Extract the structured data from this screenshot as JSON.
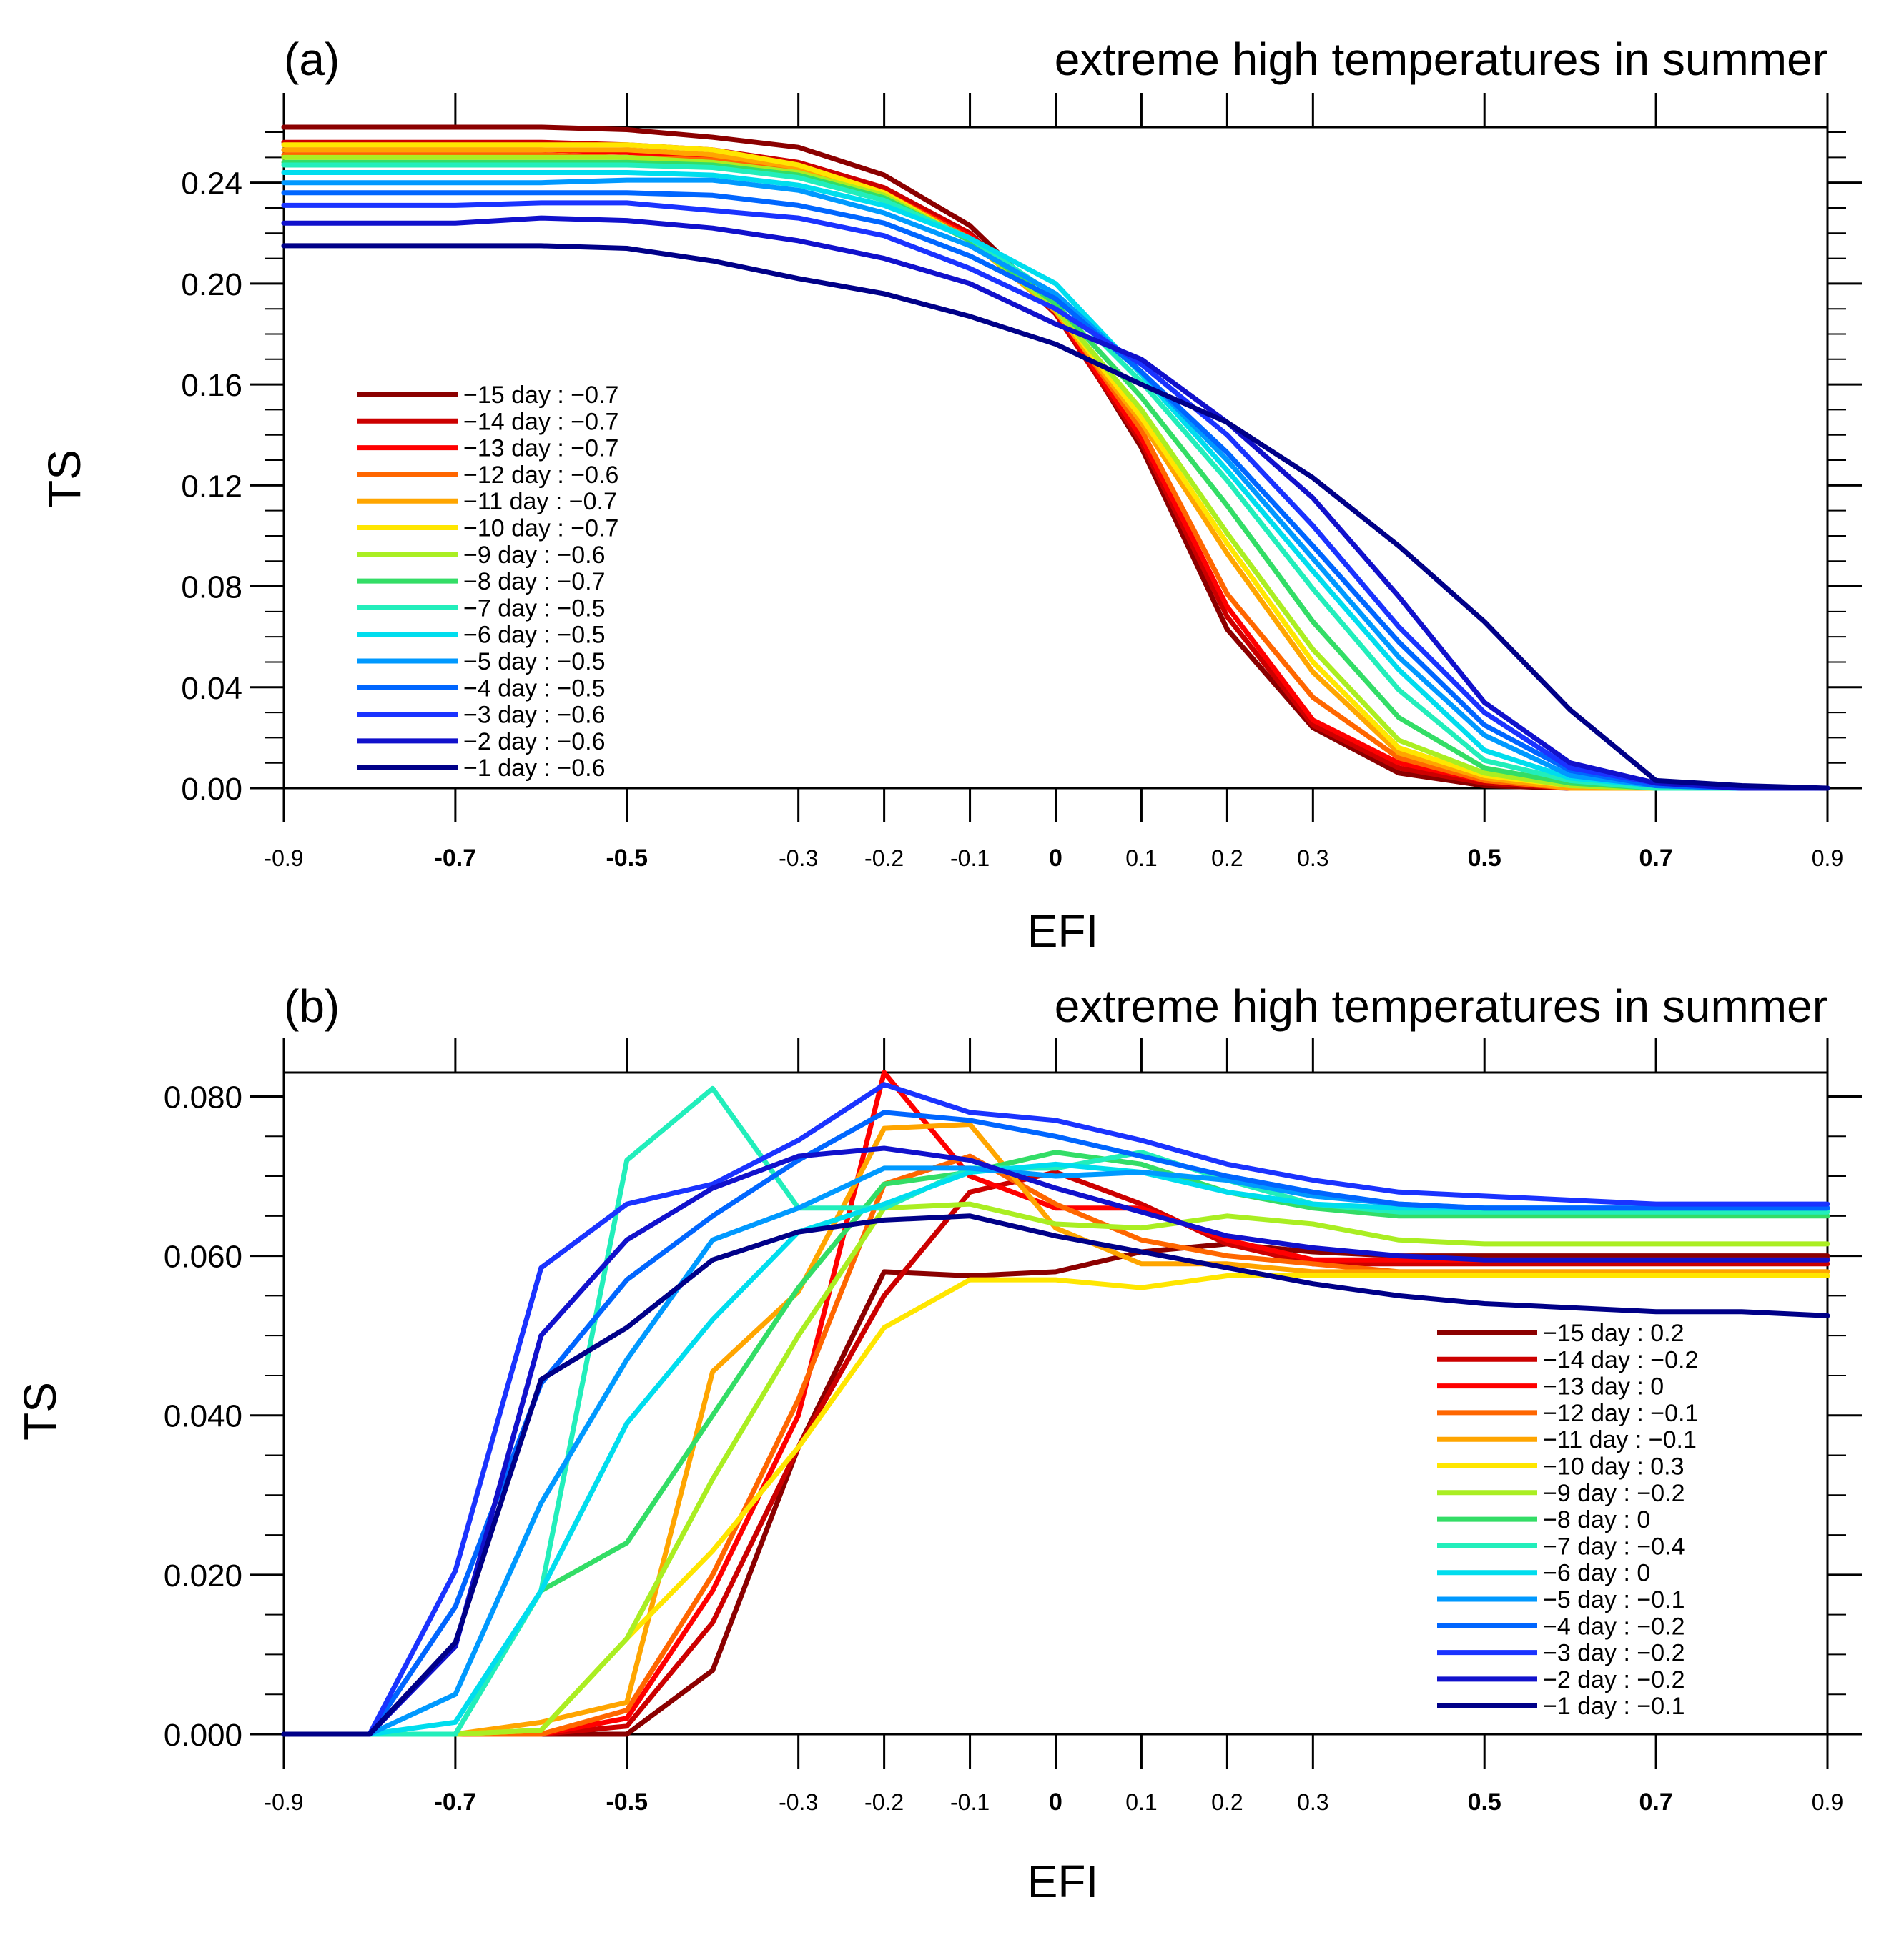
{
  "chart_data": [
    {
      "type": "line",
      "panel_label": "(a)",
      "title": "extreme high temperatures in summer",
      "xlabel": "EFI",
      "ylabel": "TS",
      "x": [
        -0.9,
        -0.8,
        -0.7,
        -0.6,
        -0.5,
        -0.4,
        -0.3,
        -0.2,
        -0.1,
        0,
        0.1,
        0.2,
        0.3,
        0.4,
        0.5,
        0.6,
        0.7,
        0.8,
        0.9
      ],
      "xticks": [
        "-0.9",
        "-0.7",
        "-0.5",
        "-0.3",
        "-0.2",
        "-0.1",
        "0",
        "0.1",
        "0.2",
        "0.3",
        "0.5",
        "0.7",
        "0.9"
      ],
      "xlim": [
        -0.9,
        0.9
      ],
      "yticks": [
        "0.00",
        "0.04",
        "0.08",
        "0.12",
        "0.16",
        "0.20",
        "0.24"
      ],
      "ylim": [
        0,
        0.262
      ],
      "grid": false,
      "legend_position": "left",
      "series": [
        {
          "name": "−15 day : −0.7",
          "color": "#8b0000",
          "values": [
            0.262,
            0.262,
            0.262,
            0.262,
            0.261,
            0.258,
            0.254,
            0.243,
            0.223,
            0.19,
            0.135,
            0.063,
            0.024,
            0.006,
            0.001,
            0,
            0,
            0,
            0
          ]
        },
        {
          "name": "−14 day : −0.7",
          "color": "#cc0000",
          "values": [
            0.256,
            0.256,
            0.256,
            0.256,
            0.255,
            0.253,
            0.248,
            0.238,
            0.22,
            0.188,
            0.137,
            0.068,
            0.025,
            0.008,
            0.002,
            0,
            0,
            0,
            0
          ]
        },
        {
          "name": "−13 day : −0.7",
          "color": "#ff0000",
          "values": [
            0.253,
            0.253,
            0.253,
            0.253,
            0.252,
            0.25,
            0.246,
            0.236,
            0.219,
            0.189,
            0.139,
            0.072,
            0.027,
            0.01,
            0.003,
            0,
            0,
            0,
            0
          ]
        },
        {
          "name": "−12 day : −0.6",
          "color": "#ff6600",
          "values": [
            0.251,
            0.251,
            0.251,
            0.251,
            0.25,
            0.249,
            0.245,
            0.236,
            0.218,
            0.19,
            0.142,
            0.077,
            0.036,
            0.012,
            0.003,
            0,
            0,
            0,
            0
          ]
        },
        {
          "name": "−11 day : −0.7",
          "color": "#ffa500",
          "values": [
            0.253,
            0.253,
            0.253,
            0.253,
            0.253,
            0.251,
            0.246,
            0.235,
            0.217,
            0.189,
            0.145,
            0.093,
            0.046,
            0.014,
            0.004,
            0,
            0,
            0,
            0
          ]
        },
        {
          "name": "−10 day : −0.7",
          "color": "#ffe600",
          "values": [
            0.255,
            0.255,
            0.255,
            0.255,
            0.255,
            0.253,
            0.247,
            0.236,
            0.217,
            0.19,
            0.147,
            0.097,
            0.05,
            0.016,
            0.005,
            0.001,
            0,
            0,
            0
          ]
        },
        {
          "name": "−9 day : −0.6",
          "color": "#aaee22",
          "values": [
            0.25,
            0.25,
            0.25,
            0.25,
            0.25,
            0.248,
            0.244,
            0.235,
            0.217,
            0.19,
            0.15,
            0.101,
            0.055,
            0.019,
            0.006,
            0.001,
            0,
            0,
            0
          ]
        },
        {
          "name": "−8 day : −0.7",
          "color": "#33dd66",
          "values": [
            0.248,
            0.248,
            0.248,
            0.248,
            0.248,
            0.247,
            0.243,
            0.234,
            0.217,
            0.192,
            0.155,
            0.112,
            0.066,
            0.028,
            0.008,
            0.002,
            0,
            0,
            0
          ]
        },
        {
          "name": "−7 day : −0.5",
          "color": "#22eebb",
          "values": [
            0.247,
            0.247,
            0.247,
            0.247,
            0.247,
            0.246,
            0.242,
            0.233,
            0.218,
            0.195,
            0.161,
            0.122,
            0.079,
            0.039,
            0.011,
            0.003,
            0,
            0,
            0
          ]
        },
        {
          "name": "−6 day : −0.5",
          "color": "#00ddee",
          "values": [
            0.244,
            0.244,
            0.244,
            0.244,
            0.244,
            0.243,
            0.239,
            0.231,
            0.218,
            0.2,
            0.164,
            0.126,
            0.086,
            0.047,
            0.015,
            0.004,
            0.001,
            0,
            0
          ]
        },
        {
          "name": "−5 day : −0.5",
          "color": "#0099ff",
          "values": [
            0.24,
            0.24,
            0.24,
            0.24,
            0.241,
            0.241,
            0.237,
            0.228,
            0.215,
            0.196,
            0.165,
            0.13,
            0.091,
            0.052,
            0.021,
            0.005,
            0.001,
            0,
            0
          ]
        },
        {
          "name": "−4 day : −0.5",
          "color": "#0066ff",
          "values": [
            0.236,
            0.236,
            0.236,
            0.236,
            0.236,
            0.235,
            0.231,
            0.224,
            0.211,
            0.194,
            0.165,
            0.133,
            0.096,
            0.058,
            0.025,
            0.007,
            0.001,
            0,
            0
          ]
        },
        {
          "name": "−3 day : −0.6",
          "color": "#1a33ff",
          "values": [
            0.231,
            0.231,
            0.231,
            0.232,
            0.232,
            0.229,
            0.226,
            0.219,
            0.206,
            0.19,
            0.168,
            0.14,
            0.104,
            0.064,
            0.03,
            0.008,
            0.002,
            0,
            0
          ]
        },
        {
          "name": "−2 day : −0.6",
          "color": "#1111cc",
          "values": [
            0.224,
            0.224,
            0.224,
            0.226,
            0.225,
            0.222,
            0.217,
            0.21,
            0.2,
            0.184,
            0.17,
            0.145,
            0.115,
            0.076,
            0.034,
            0.01,
            0.002,
            0,
            0
          ]
        },
        {
          "name": "−1 day : −0.6",
          "color": "#000088",
          "values": [
            0.215,
            0.215,
            0.215,
            0.215,
            0.214,
            0.209,
            0.202,
            0.196,
            0.187,
            0.176,
            0.16,
            0.145,
            0.123,
            0.096,
            0.066,
            0.031,
            0.003,
            0.001,
            0
          ]
        }
      ]
    },
    {
      "type": "line",
      "panel_label": "(b)",
      "title": "extreme high temperatures in summer",
      "xlabel": "EFI",
      "ylabel": "TS",
      "x": [
        -0.9,
        -0.8,
        -0.7,
        -0.6,
        -0.5,
        -0.4,
        -0.3,
        -0.2,
        -0.1,
        0,
        0.1,
        0.2,
        0.3,
        0.4,
        0.5,
        0.6,
        0.7,
        0.8,
        0.9
      ],
      "xticks": [
        "-0.9",
        "-0.7",
        "-0.5",
        "-0.3",
        "-0.2",
        "-0.1",
        "0",
        "0.1",
        "0.2",
        "0.3",
        "0.5",
        "0.7",
        "0.9"
      ],
      "xlim": [
        -0.9,
        0.9
      ],
      "yticks": [
        "0.000",
        "0.020",
        "0.040",
        "0.060",
        "0.080"
      ],
      "ylim": [
        0,
        0.083
      ],
      "grid": false,
      "legend_position": "bottom-right",
      "series": [
        {
          "name": "−15 day : 0.2",
          "color": "#8b0000",
          "values": [
            0,
            0,
            0,
            0,
            0,
            0.008,
            0.036,
            0.058,
            0.0575,
            0.058,
            0.0605,
            0.0615,
            0.0605,
            0.06,
            0.06,
            0.06,
            0.06,
            0.06,
            0.06
          ]
        },
        {
          "name": "−14 day : −0.2",
          "color": "#cc0000",
          "values": [
            0,
            0,
            0,
            0,
            0.001,
            0.014,
            0.036,
            0.055,
            0.068,
            0.0705,
            0.0665,
            0.0615,
            0.059,
            0.059,
            0.059,
            0.059,
            0.059,
            0.059,
            0.059
          ]
        },
        {
          "name": "−13 day : 0",
          "color": "#ff0000",
          "values": [
            0,
            0,
            0,
            0,
            0.002,
            0.018,
            0.04,
            0.083,
            0.07,
            0.066,
            0.066,
            0.062,
            0.0595,
            0.0595,
            0.0595,
            0.0595,
            0.0595,
            0.0595,
            0.0595
          ]
        },
        {
          "name": "−12 day : −0.1",
          "color": "#ff6600",
          "values": [
            0,
            0,
            0,
            0,
            0.003,
            0.02,
            0.042,
            0.069,
            0.0725,
            0.0665,
            0.062,
            0.06,
            0.059,
            0.058,
            0.058,
            0.058,
            0.058,
            0.058,
            0.058
          ]
        },
        {
          "name": "−11 day : −0.1",
          "color": "#ffa500",
          "values": [
            0,
            0,
            0,
            0.0015,
            0.004,
            0.0455,
            0.0555,
            0.076,
            0.0765,
            0.0635,
            0.059,
            0.059,
            0.058,
            0.058,
            0.058,
            0.058,
            0.058,
            0.058,
            0.058
          ]
        },
        {
          "name": "−10 day : 0.3",
          "color": "#ffe600",
          "values": [
            0,
            0,
            0,
            0.0005,
            0.012,
            0.023,
            0.036,
            0.051,
            0.057,
            0.057,
            0.056,
            0.0575,
            0.0575,
            0.0575,
            0.0575,
            0.0575,
            0.0575,
            0.0575,
            0.0575
          ]
        },
        {
          "name": "−9 day : −0.2",
          "color": "#aaee22",
          "values": [
            0,
            0,
            0,
            0.0005,
            0.012,
            0.032,
            0.05,
            0.066,
            0.0665,
            0.064,
            0.0635,
            0.065,
            0.064,
            0.062,
            0.0615,
            0.0615,
            0.0615,
            0.0615,
            0.0615
          ]
        },
        {
          "name": "−8 day : 0",
          "color": "#33dd66",
          "values": [
            0,
            0,
            0,
            0.018,
            0.024,
            0.04,
            0.056,
            0.069,
            0.0705,
            0.073,
            0.0715,
            0.068,
            0.066,
            0.065,
            0.065,
            0.065,
            0.065,
            0.065,
            0.065
          ]
        },
        {
          "name": "−7 day : −0.4",
          "color": "#22eebb",
          "values": [
            0,
            0,
            0,
            0.018,
            0.072,
            0.081,
            0.066,
            0.066,
            0.071,
            0.071,
            0.073,
            0.0695,
            0.0665,
            0.0655,
            0.0655,
            0.0655,
            0.0655,
            0.0655,
            0.0655
          ]
        },
        {
          "name": "−6 day : 0",
          "color": "#00ddee",
          "values": [
            0,
            0,
            0.0015,
            0.018,
            0.039,
            0.052,
            0.063,
            0.0665,
            0.0705,
            0.0715,
            0.0705,
            0.068,
            0.0665,
            0.066,
            0.066,
            0.066,
            0.066,
            0.066,
            0.066
          ]
        },
        {
          "name": "−5 day : −0.1",
          "color": "#0099ff",
          "values": [
            0,
            0,
            0.005,
            0.029,
            0.047,
            0.062,
            0.066,
            0.071,
            0.071,
            0.07,
            0.0705,
            0.0695,
            0.0675,
            0.0665,
            0.066,
            0.066,
            0.066,
            0.066,
            0.066
          ]
        },
        {
          "name": "−4 day : −0.2",
          "color": "#0066ff",
          "values": [
            0,
            0,
            0.016,
            0.044,
            0.057,
            0.065,
            0.072,
            0.078,
            0.077,
            0.075,
            0.0725,
            0.07,
            0.068,
            0.0665,
            0.066,
            0.066,
            0.066,
            0.066,
            0.066
          ]
        },
        {
          "name": "−3 day : −0.2",
          "color": "#1a33ff",
          "values": [
            0,
            0,
            0.0205,
            0.0585,
            0.0665,
            0.069,
            0.0745,
            0.0815,
            0.078,
            0.077,
            0.0745,
            0.0715,
            0.0695,
            0.068,
            0.0675,
            0.067,
            0.0665,
            0.0665,
            0.0665
          ]
        },
        {
          "name": "−2 day : −0.2",
          "color": "#1111cc",
          "values": [
            0,
            0,
            0.011,
            0.05,
            0.062,
            0.0685,
            0.0725,
            0.0735,
            0.072,
            0.0685,
            0.0655,
            0.0625,
            0.061,
            0.06,
            0.0595,
            0.0595,
            0.0595,
            0.0595,
            0.0595
          ]
        },
        {
          "name": "−1 day : −0.1",
          "color": "#000088",
          "values": [
            0,
            0,
            0.0115,
            0.0445,
            0.051,
            0.0595,
            0.063,
            0.0645,
            0.065,
            0.0625,
            0.0605,
            0.0585,
            0.0565,
            0.055,
            0.054,
            0.0535,
            0.053,
            0.053,
            0.0525
          ]
        }
      ]
    }
  ]
}
